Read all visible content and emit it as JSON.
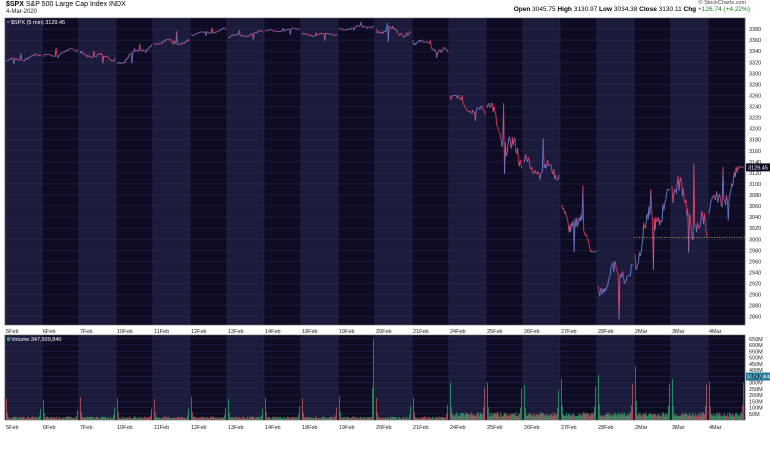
{
  "header": {
    "symbol": "$SPX",
    "name": "S&P 500 Large Cap Index",
    "exchange": "INDX",
    "date": "4-Mar-2020",
    "credit": "© StockCharts.com",
    "open_label": "Open",
    "open": "3045.75",
    "high_label": "High",
    "high": "3130.97",
    "low_label": "Low",
    "low": "3034.38",
    "close_label": "Close",
    "close": "3130.11",
    "chg_label": "Chg",
    "chg": "+126.74 (+4.22%)"
  },
  "colors": {
    "plot_bg": "#0d0c22",
    "band": "#1b1b3b",
    "grid": "#2a2a52",
    "price_up": "#6b7fd6",
    "price_down": "#e0365a",
    "vol_up": "#2aa06a",
    "vol_down": "#c0545e"
  },
  "chart_data": {
    "type": "line",
    "title": "$SPX S&P 500 Large Cap Index",
    "legend_price": "$SPX (5 min) 3129.45",
    "legend_volume": "Volume 347,939,840",
    "last_price_label": "3129.45",
    "last_volume_label": "347939840",
    "x": [
      "5Feb",
      "6Feb",
      "7Feb",
      "10Feb",
      "11Feb",
      "12Feb",
      "13Feb",
      "14Feb",
      "18Feb",
      "19Feb",
      "20Feb",
      "21Feb",
      "24Feb",
      "25Feb",
      "26Feb",
      "27Feb",
      "28Feb",
      "2Mar",
      "3Mar",
      "4Mar"
    ],
    "x_tick_labels": [
      "5Feb",
      "6Feb",
      "7Feb",
      "10Feb",
      "11Feb",
      "12Feb",
      "13Feb",
      "14Feb",
      "18Feb",
      "19Feb",
      "20Feb",
      "21Feb",
      "24Feb",
      "25Feb",
      "26Feb",
      "27Feb",
      "28Feb",
      "2Mar",
      "3Mar",
      "4Mar"
    ],
    "price": {
      "ylim": [
        2845,
        3400
      ],
      "y_ticks": [
        2860,
        2880,
        2900,
        2920,
        2940,
        2960,
        2980,
        3000,
        3020,
        3040,
        3060,
        3080,
        3100,
        3120,
        3140,
        3160,
        3180,
        3200,
        3220,
        3240,
        3260,
        3280,
        3300,
        3320,
        3340,
        3360,
        3380
      ],
      "sessions": [
        {
          "day": "5Feb",
          "open": 3322,
          "close": 3332,
          "high": 3336,
          "low": 3317
        },
        {
          "day": "6Feb",
          "open": 3330,
          "close": 3343,
          "high": 3346,
          "low": 3328
        },
        {
          "day": "7Feb",
          "open": 3336,
          "close": 3327,
          "high": 3341,
          "low": 3318
        },
        {
          "day": "10Feb",
          "open": 3320,
          "close": 3352,
          "high": 3353,
          "low": 3318
        },
        {
          "day": "11Feb",
          "open": 3355,
          "close": 3358,
          "high": 3376,
          "low": 3352
        },
        {
          "day": "12Feb",
          "open": 3370,
          "close": 3379,
          "high": 3382,
          "low": 3368
        },
        {
          "day": "13Feb",
          "open": 3365,
          "close": 3374,
          "high": 3378,
          "low": 3361
        },
        {
          "day": "14Feb",
          "open": 3376,
          "close": 3380,
          "high": 3382,
          "low": 3370
        },
        {
          "day": "18Feb",
          "open": 3370,
          "close": 3371,
          "high": 3374,
          "low": 3359
        },
        {
          "day": "19Feb",
          "open": 3380,
          "close": 3386,
          "high": 3393,
          "low": 3378
        },
        {
          "day": "20Feb",
          "open": 3380,
          "close": 3373,
          "high": 3391,
          "low": 3357
        },
        {
          "day": "21Feb",
          "open": 3360,
          "close": 3338,
          "high": 3360,
          "low": 3328
        },
        {
          "day": "24Feb",
          "open": 3258,
          "close": 3226,
          "high": 3260,
          "low": 3214
        },
        {
          "day": "25Feb",
          "open": 3238,
          "close": 3128,
          "high": 3246,
          "low": 3118
        },
        {
          "day": "26Feb",
          "open": 3139,
          "close": 3116,
          "high": 3182,
          "low": 3108
        },
        {
          "day": "27Feb",
          "open": 3062,
          "close": 2979,
          "high": 3097,
          "low": 2977
        },
        {
          "day": "28Feb",
          "open": 2916,
          "close": 2954,
          "high": 2959,
          "low": 2855
        },
        {
          "day": "2Mar",
          "open": 2974,
          "close": 3090,
          "high": 3090,
          "low": 2945
        },
        {
          "day": "3Mar",
          "open": 3096,
          "close": 3003,
          "high": 3136,
          "low": 2976
        },
        {
          "day": "4Mar",
          "open": 3045,
          "close": 3130,
          "high": 3131,
          "low": 3034
        }
      ],
      "reference_line": 3003
    },
    "volume": {
      "ylim": [
        0,
        680000000
      ],
      "y_ticks": [
        50000000,
        100000000,
        150000000,
        200000000,
        250000000,
        300000000,
        350000000,
        400000000,
        450000000,
        500000000,
        550000000,
        600000000,
        650000000
      ],
      "y_tick_labels": [
        "50M",
        "100M",
        "150M",
        "200M",
        "250M",
        "300M",
        "350M",
        "400M",
        "450M",
        "500M",
        "550M",
        "600M",
        "650M"
      ],
      "open_spikes": [
        170000000,
        160000000,
        180000000,
        175000000,
        165000000,
        185000000,
        170000000,
        180000000,
        175000000,
        190000000,
        175000000,
        180000000,
        300000000,
        300000000,
        280000000,
        330000000,
        360000000,
        430000000,
        330000000,
        310000000
      ],
      "close_spikes": [
        90000000,
        80000000,
        100000000,
        90000000,
        95000000,
        100000000,
        90000000,
        110000000,
        100000000,
        650000000,
        110000000,
        120000000,
        260000000,
        250000000,
        240000000,
        270000000,
        290000000,
        290000000,
        280000000,
        300000000
      ]
    },
    "grid": true,
    "legend": "top-left"
  }
}
